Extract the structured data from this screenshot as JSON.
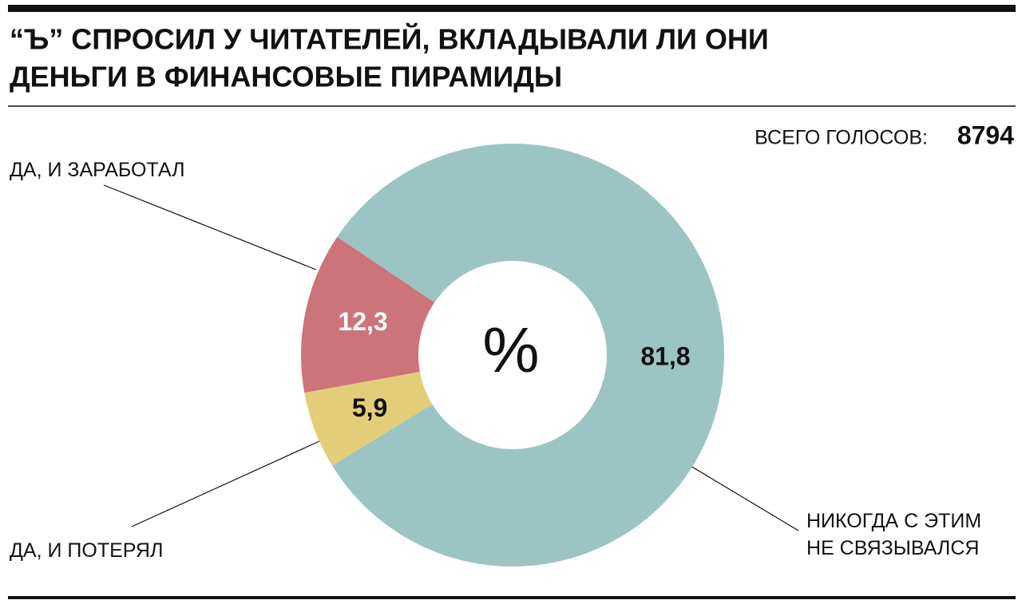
{
  "chart_data": {
    "type": "donut",
    "title": [
      "“Ъ” СПРОСИЛ У ЧИТАТЕЛЕЙ, ВКЛАДЫВАЛИ ЛИ ОНИ",
      "ДЕНЬГИ В ФИНАНСОВЫЕ ПИРАМИДЫ"
    ],
    "total_label": "ВСЕГО ГОЛОСОВ:",
    "total": 8794,
    "center_label": "%",
    "categories": [
      "ДА, И ЗАРАБОТАЛ",
      "ДА, И ПОТЕРЯЛ",
      "НИКОГДА С ЭТИМ НЕ СВЯЗЫВАЛСЯ"
    ],
    "values": [
      12.3,
      5.9,
      81.8
    ],
    "value_labels": [
      "12,3",
      "5,9",
      "81,8"
    ],
    "colors": [
      "#cc747a",
      "#e4cd78",
      "#9cc4c3"
    ],
    "value_label_colors": [
      "#ffffff",
      "#111111",
      "#111111"
    ]
  }
}
